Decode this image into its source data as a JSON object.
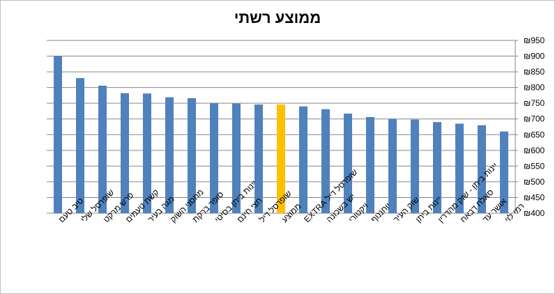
{
  "chart_data": {
    "type": "bar",
    "title": "ממוצע רשתי",
    "xlabel": "",
    "ylabel": "",
    "ylim": [
      400,
      950
    ],
    "ytick_step": 50,
    "ytick_format": "₪{v}",
    "yaxis_side": "right",
    "grid": true,
    "legend": "none",
    "categories": [
      "טיב טעם",
      "שופרסל שלי",
      "פרש מרקט",
      "קשת טעמים",
      "מגה בעיר",
      "מחסני השוק",
      "סופר ברקת",
      "יינות ביתן בסיטי",
      "חצי חינם",
      "שופרסל דיל",
      "ממוצע",
      "שופרסל דיל EXTRA",
      "יש בשכונה",
      "ויקטורי",
      "יוחננוף",
      "שוק העיר",
      "יינות ביתן",
      "יינות ביתן - שוק מהדרין",
      "סאלח דבאח",
      "אושר עד",
      "רמי לוי"
    ],
    "values": [
      900,
      830,
      806,
      782,
      781,
      769,
      766,
      750,
      749,
      746,
      746,
      740,
      731,
      717,
      706,
      700,
      698,
      690,
      685,
      680,
      660
    ],
    "colors": {
      "bar": "#4f81bd",
      "highlight": "#ffc000",
      "grid": "#868686",
      "axis": "#868686",
      "text": "#000000"
    },
    "highlight_index": 10
  }
}
